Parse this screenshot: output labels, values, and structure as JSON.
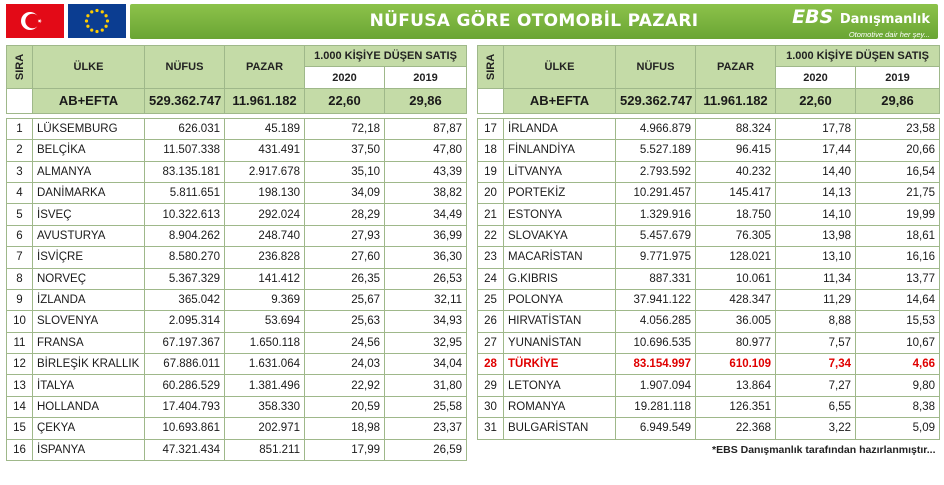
{
  "header": {
    "title": "NÜFUSA GÖRE OTOMOBİL PAZARI",
    "brand_a": "EBS",
    "brand_b": "Danışmanlık",
    "slogan": "Otomotive dair her şey..."
  },
  "columns": {
    "sira": "SIRA",
    "ulke": "ÜLKE",
    "nufus": "NÜFUS",
    "pazar": "PAZAR",
    "group": "1.000 KİŞİYE DÜŞEN SATIŞ",
    "y2020": "2020",
    "y2019": "2019"
  },
  "total": {
    "name": "AB+EFTA",
    "nufus": "529.362.747",
    "pazar": "11.961.182",
    "v2020": "22,60",
    "v2019": "29,86"
  },
  "left_rows": [
    {
      "rank": "1",
      "country": "LÜKSEMBURG",
      "pop": "626.031",
      "market": "45.189",
      "v2020": "72,18",
      "v2019": "87,87"
    },
    {
      "rank": "2",
      "country": "BELÇİKA",
      "pop": "11.507.338",
      "market": "431.491",
      "v2020": "37,50",
      "v2019": "47,80"
    },
    {
      "rank": "3",
      "country": "ALMANYA",
      "pop": "83.135.181",
      "market": "2.917.678",
      "v2020": "35,10",
      "v2019": "43,39"
    },
    {
      "rank": "4",
      "country": "DANİMARKA",
      "pop": "5.811.651",
      "market": "198.130",
      "v2020": "34,09",
      "v2019": "38,82"
    },
    {
      "rank": "5",
      "country": "İSVEÇ",
      "pop": "10.322.613",
      "market": "292.024",
      "v2020": "28,29",
      "v2019": "34,49"
    },
    {
      "rank": "6",
      "country": "AVUSTURYA",
      "pop": "8.904.262",
      "market": "248.740",
      "v2020": "27,93",
      "v2019": "36,99"
    },
    {
      "rank": "7",
      "country": "İSVİÇRE",
      "pop": "8.580.270",
      "market": "236.828",
      "v2020": "27,60",
      "v2019": "36,30"
    },
    {
      "rank": "8",
      "country": "NORVEÇ",
      "pop": "5.367.329",
      "market": "141.412",
      "v2020": "26,35",
      "v2019": "26,53"
    },
    {
      "rank": "9",
      "country": "İZLANDA",
      "pop": "365.042",
      "market": "9.369",
      "v2020": "25,67",
      "v2019": "32,11"
    },
    {
      "rank": "10",
      "country": "SLOVENYA",
      "pop": "2.095.314",
      "market": "53.694",
      "v2020": "25,63",
      "v2019": "34,93"
    },
    {
      "rank": "11",
      "country": "FRANSA",
      "pop": "67.197.367",
      "market": "1.650.118",
      "v2020": "24,56",
      "v2019": "32,95"
    },
    {
      "rank": "12",
      "country": "BİRLEŞİK KRALLIK",
      "pop": "67.886.011",
      "market": "1.631.064",
      "v2020": "24,03",
      "v2019": "34,04"
    },
    {
      "rank": "13",
      "country": "İTALYA",
      "pop": "60.286.529",
      "market": "1.381.496",
      "v2020": "22,92",
      "v2019": "31,80"
    },
    {
      "rank": "14",
      "country": "HOLLANDA",
      "pop": "17.404.793",
      "market": "358.330",
      "v2020": "20,59",
      "v2019": "25,58"
    },
    {
      "rank": "15",
      "country": "ÇEKYA",
      "pop": "10.693.861",
      "market": "202.971",
      "v2020": "18,98",
      "v2019": "23,37"
    },
    {
      "rank": "16",
      "country": "İSPANYA",
      "pop": "47.321.434",
      "market": "851.211",
      "v2020": "17,99",
      "v2019": "26,59"
    }
  ],
  "right_rows": [
    {
      "rank": "17",
      "country": "İRLANDA",
      "pop": "4.966.879",
      "market": "88.324",
      "v2020": "17,78",
      "v2019": "23,58"
    },
    {
      "rank": "18",
      "country": "FİNLANDİYA",
      "pop": "5.527.189",
      "market": "96.415",
      "v2020": "17,44",
      "v2019": "20,66"
    },
    {
      "rank": "19",
      "country": "LİTVANYA",
      "pop": "2.793.592",
      "market": "40.232",
      "v2020": "14,40",
      "v2019": "16,54"
    },
    {
      "rank": "20",
      "country": "PORTEKİZ",
      "pop": "10.291.457",
      "market": "145.417",
      "v2020": "14,13",
      "v2019": "21,75"
    },
    {
      "rank": "21",
      "country": "ESTONYA",
      "pop": "1.329.916",
      "market": "18.750",
      "v2020": "14,10",
      "v2019": "19,99"
    },
    {
      "rank": "22",
      "country": "SLOVAKYA",
      "pop": "5.457.679",
      "market": "76.305",
      "v2020": "13,98",
      "v2019": "18,61"
    },
    {
      "rank": "23",
      "country": "MACARİSTAN",
      "pop": "9.771.975",
      "market": "128.021",
      "v2020": "13,10",
      "v2019": "16,16"
    },
    {
      "rank": "24",
      "country": "G.KIBRIS",
      "pop": "887.331",
      "market": "10.061",
      "v2020": "11,34",
      "v2019": "13,77"
    },
    {
      "rank": "25",
      "country": "POLONYA",
      "pop": "37.941.122",
      "market": "428.347",
      "v2020": "11,29",
      "v2019": "14,64"
    },
    {
      "rank": "26",
      "country": "HIRVATİSTAN",
      "pop": "4.056.285",
      "market": "36.005",
      "v2020": "8,88",
      "v2019": "15,53"
    },
    {
      "rank": "27",
      "country": "YUNANİSTAN",
      "pop": "10.696.535",
      "market": "80.977",
      "v2020": "7,57",
      "v2019": "10,67"
    },
    {
      "rank": "28",
      "country": "TÜRKİYE",
      "pop": "83.154.997",
      "market": "610.109",
      "v2020": "7,34",
      "v2019": "4,66",
      "highlight": true
    },
    {
      "rank": "29",
      "country": "LETONYA",
      "pop": "1.907.094",
      "market": "13.864",
      "v2020": "7,27",
      "v2019": "9,80"
    },
    {
      "rank": "30",
      "country": "ROMANYA",
      "pop": "19.281.118",
      "market": "126.351",
      "v2020": "6,55",
      "v2019": "8,38"
    },
    {
      "rank": "31",
      "country": "BULGARİSTAN",
      "pop": "6.949.549",
      "market": "22.368",
      "v2020": "3,22",
      "v2019": "5,09"
    }
  ],
  "footnote": "*EBS Danışmanlık tarafından hazırlanmıştır...",
  "colors": {
    "header_green": "#6aa534",
    "table_header": "#c4dba7",
    "highlight_red": "#e00000"
  }
}
